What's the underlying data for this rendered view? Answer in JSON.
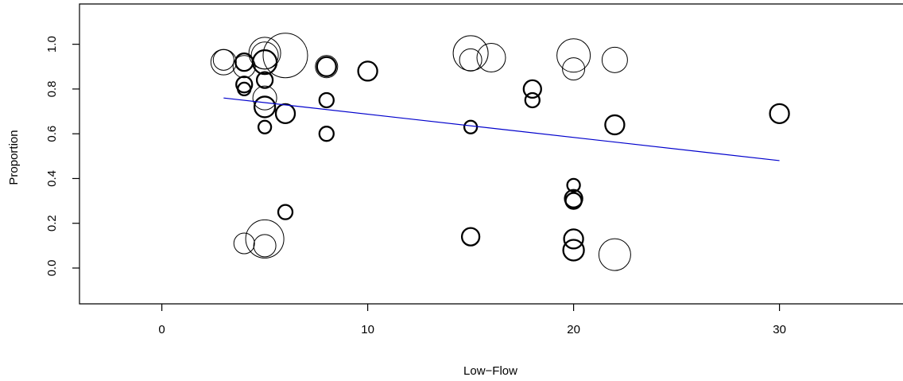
{
  "chart_data": {
    "type": "scatter",
    "subtype": "bubble",
    "title": "",
    "xlabel": "Low−Flow",
    "ylabel": "Proportion",
    "xlim": [
      -4,
      36
    ],
    "ylim": [
      -0.16,
      1.18
    ],
    "x_ticks": [
      0,
      10,
      20,
      30
    ],
    "x_tick_labels": [
      "0",
      "10",
      "20",
      "30"
    ],
    "y_ticks": [
      0.0,
      0.2,
      0.4,
      0.6,
      0.8,
      1.0
    ],
    "y_tick_labels": [
      "0.0",
      "0.2",
      "0.4",
      "0.6",
      "0.8",
      "1.0"
    ],
    "grid": false,
    "legend": "none",
    "colors": {
      "points": "#000000",
      "fit_line": "#0000cc"
    },
    "point_style": "open circles; circle size and line weight vary by point",
    "points": [
      {
        "x": 3,
        "y": 0.92,
        "size": 16,
        "weight": "thin"
      },
      {
        "x": 3,
        "y": 0.93,
        "size": 13,
        "weight": "thin"
      },
      {
        "x": 4,
        "y": 0.92,
        "size": 11,
        "weight": "thick"
      },
      {
        "x": 4,
        "y": 0.9,
        "size": 14,
        "weight": "thin"
      },
      {
        "x": 4,
        "y": 0.82,
        "size": 10,
        "weight": "thick"
      },
      {
        "x": 4,
        "y": 0.8,
        "size": 8,
        "weight": "thick"
      },
      {
        "x": 4,
        "y": 0.11,
        "size": 13,
        "weight": "thin"
      },
      {
        "x": 5,
        "y": 0.96,
        "size": 20,
        "weight": "thin"
      },
      {
        "x": 5,
        "y": 0.95,
        "size": 17,
        "weight": "thin"
      },
      {
        "x": 5,
        "y": 0.92,
        "size": 15,
        "weight": "thick"
      },
      {
        "x": 5,
        "y": 0.84,
        "size": 10,
        "weight": "thick"
      },
      {
        "x": 5,
        "y": 0.76,
        "size": 15,
        "weight": "thin"
      },
      {
        "x": 5,
        "y": 0.72,
        "size": 13,
        "weight": "thick"
      },
      {
        "x": 5,
        "y": 0.63,
        "size": 8,
        "weight": "thick"
      },
      {
        "x": 5,
        "y": 0.13,
        "size": 24,
        "weight": "thin"
      },
      {
        "x": 5,
        "y": 0.1,
        "size": 14,
        "weight": "thin"
      },
      {
        "x": 6,
        "y": 0.95,
        "size": 28,
        "weight": "thin"
      },
      {
        "x": 6,
        "y": 0.69,
        "size": 12,
        "weight": "thick"
      },
      {
        "x": 6,
        "y": 0.25,
        "size": 9,
        "weight": "thick"
      },
      {
        "x": 8,
        "y": 0.9,
        "size": 12,
        "weight": "thick"
      },
      {
        "x": 8,
        "y": 0.9,
        "size": 14,
        "weight": "thin"
      },
      {
        "x": 8,
        "y": 0.75,
        "size": 9,
        "weight": "thick"
      },
      {
        "x": 8,
        "y": 0.6,
        "size": 9,
        "weight": "thick"
      },
      {
        "x": 10,
        "y": 0.88,
        "size": 12,
        "weight": "thick"
      },
      {
        "x": 15,
        "y": 0.96,
        "size": 22,
        "weight": "thin"
      },
      {
        "x": 15,
        "y": 0.93,
        "size": 14,
        "weight": "thin"
      },
      {
        "x": 15,
        "y": 0.63,
        "size": 8,
        "weight": "thick"
      },
      {
        "x": 15,
        "y": 0.14,
        "size": 11,
        "weight": "thick"
      },
      {
        "x": 16,
        "y": 0.94,
        "size": 18,
        "weight": "thin"
      },
      {
        "x": 18,
        "y": 0.8,
        "size": 11,
        "weight": "thick"
      },
      {
        "x": 18,
        "y": 0.75,
        "size": 9,
        "weight": "thick"
      },
      {
        "x": 20,
        "y": 0.95,
        "size": 21,
        "weight": "thin"
      },
      {
        "x": 20,
        "y": 0.89,
        "size": 14,
        "weight": "thin"
      },
      {
        "x": 20,
        "y": 0.37,
        "size": 8,
        "weight": "thick"
      },
      {
        "x": 20,
        "y": 0.31,
        "size": 11,
        "weight": "thick"
      },
      {
        "x": 20,
        "y": 0.3,
        "size": 10,
        "weight": "thick"
      },
      {
        "x": 20,
        "y": 0.13,
        "size": 12,
        "weight": "thick"
      },
      {
        "x": 20,
        "y": 0.08,
        "size": 13,
        "weight": "thick"
      },
      {
        "x": 22,
        "y": 0.93,
        "size": 16,
        "weight": "thin"
      },
      {
        "x": 22,
        "y": 0.64,
        "size": 12,
        "weight": "thick"
      },
      {
        "x": 22,
        "y": 0.06,
        "size": 20,
        "weight": "thin"
      },
      {
        "x": 30,
        "y": 0.69,
        "size": 12,
        "weight": "thick"
      }
    ],
    "fit_line": {
      "x": [
        3,
        30
      ],
      "y": [
        0.76,
        0.48
      ]
    }
  }
}
